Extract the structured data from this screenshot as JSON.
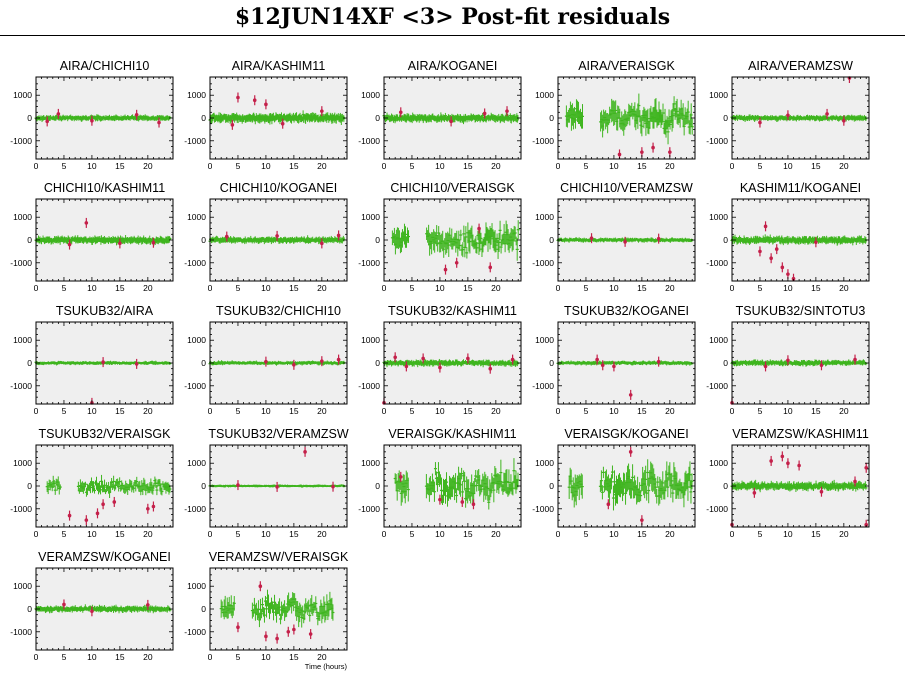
{
  "page": {
    "title": "$12JUN14XF <3> Post-fit residuals"
  },
  "colors": {
    "good": "#3fb51f",
    "flagged": "#c4204a",
    "panel_bg": "#efefef",
    "frame": "#000000"
  },
  "x_axis": {
    "label": "Time (hours)",
    "ticks": [
      0,
      5,
      10,
      15,
      20
    ],
    "range": [
      0,
      24.5
    ]
  },
  "y_axis": {
    "ticks": [
      1000,
      0,
      -1000
    ],
    "range": [
      -1800,
      1800
    ]
  },
  "chart_data": {
    "type": "scatter",
    "panels": [
      {
        "name": "AIRA/CHICHI10",
        "noise": 80,
        "gap": null,
        "start": 0,
        "end": 24,
        "flags": [
          [
            2,
            -150
          ],
          [
            4,
            180
          ],
          [
            10,
            -120
          ],
          [
            18,
            140
          ],
          [
            22,
            -200
          ]
        ]
      },
      {
        "name": "AIRA/KASHIM11",
        "noise": 140,
        "gap": null,
        "start": 0,
        "end": 24,
        "flags": [
          [
            5,
            900
          ],
          [
            8,
            780
          ],
          [
            10,
            600
          ],
          [
            4,
            -300
          ],
          [
            13,
            -250
          ],
          [
            20,
            300
          ]
        ]
      },
      {
        "name": "AIRA/KOGANEI",
        "noise": 120,
        "gap": null,
        "start": 0,
        "end": 24,
        "flags": [
          [
            3,
            250
          ],
          [
            12,
            -150
          ],
          [
            18,
            200
          ],
          [
            22,
            300
          ]
        ]
      },
      {
        "name": "AIRA/VERAISGK",
        "noise": 600,
        "gap": [
          4.5,
          7.5
        ],
        "start": 1.5,
        "end": 24,
        "flags": [
          [
            11,
            -1600
          ],
          [
            15,
            -1500
          ],
          [
            17,
            -1300
          ],
          [
            20,
            -1500
          ]
        ]
      },
      {
        "name": "AIRA/VERAMZSW",
        "noise": 80,
        "gap": null,
        "start": 0,
        "end": 24,
        "flags": [
          [
            5,
            -200
          ],
          [
            10,
            120
          ],
          [
            17,
            180
          ],
          [
            20,
            -120
          ],
          [
            21,
            1800
          ]
        ]
      },
      {
        "name": "CHICHI10/KASHIM11",
        "noise": 110,
        "gap": null,
        "start": 0,
        "end": 24,
        "flags": [
          [
            9,
            750
          ],
          [
            6,
            -200
          ],
          [
            15,
            -150
          ],
          [
            21,
            -120
          ]
        ]
      },
      {
        "name": "CHICHI10/KOGANEI",
        "noise": 90,
        "gap": null,
        "start": 0,
        "end": 24,
        "flags": [
          [
            3,
            150
          ],
          [
            12,
            180
          ],
          [
            20,
            -150
          ],
          [
            23,
            200
          ]
        ]
      },
      {
        "name": "CHICHI10/VERAISGK",
        "noise": 550,
        "gap": [
          4.5,
          7.5
        ],
        "start": 1.5,
        "end": 24,
        "flags": [
          [
            11,
            -1300
          ],
          [
            13,
            -1000
          ],
          [
            17,
            500
          ],
          [
            19,
            -1200
          ]
        ]
      },
      {
        "name": "CHICHI10/VERAMZSW",
        "noise": 60,
        "gap": null,
        "start": 0,
        "end": 24,
        "flags": [
          [
            6,
            80
          ],
          [
            12,
            -80
          ],
          [
            18,
            60
          ]
        ]
      },
      {
        "name": "KASHIM11/KOGANEI",
        "noise": 110,
        "gap": null,
        "start": 0,
        "end": 24,
        "flags": [
          [
            5,
            -500
          ],
          [
            6,
            600
          ],
          [
            7,
            -800
          ],
          [
            8,
            -400
          ],
          [
            9,
            -1200
          ],
          [
            10,
            -1500
          ],
          [
            11,
            -1700
          ],
          [
            15,
            -100
          ]
        ]
      },
      {
        "name": "TSUKUB32/AIRA",
        "noise": 50,
        "gap": null,
        "start": 0,
        "end": 24,
        "flags": [
          [
            10,
            -1750
          ],
          [
            12,
            40
          ],
          [
            18,
            -40
          ]
        ]
      },
      {
        "name": "TSUKUB32/CHICHI10",
        "noise": 55,
        "gap": null,
        "start": 0,
        "end": 24,
        "flags": [
          [
            10,
            60
          ],
          [
            15,
            -80
          ],
          [
            20,
            80
          ],
          [
            23,
            150
          ]
        ]
      },
      {
        "name": "TSUKUB32/KASHIM11",
        "noise": 90,
        "gap": null,
        "start": 0,
        "end": 24,
        "flags": [
          [
            0,
            -1750
          ],
          [
            2,
            250
          ],
          [
            4,
            -150
          ],
          [
            7,
            200
          ],
          [
            10,
            -200
          ],
          [
            15,
            200
          ],
          [
            19,
            -250
          ],
          [
            23,
            150
          ]
        ]
      },
      {
        "name": "TSUKUB32/KOGANEI",
        "noise": 55,
        "gap": null,
        "start": 0,
        "end": 24,
        "flags": [
          [
            7,
            150
          ],
          [
            8,
            -100
          ],
          [
            10,
            -150
          ],
          [
            13,
            -1400
          ],
          [
            18,
            60
          ]
        ]
      },
      {
        "name": "TSUKUB32/SINTOTU3",
        "noise": 80,
        "gap": null,
        "start": 0,
        "end": 24,
        "flags": [
          [
            0,
            -1750
          ],
          [
            6,
            -150
          ],
          [
            10,
            120
          ],
          [
            16,
            -100
          ],
          [
            22,
            150
          ]
        ]
      },
      {
        "name": "TSUKUB32/VERAISGK",
        "noise": 300,
        "gap": [
          4.5,
          7.5
        ],
        "start": 2,
        "end": 24,
        "flags": [
          [
            6,
            -1300
          ],
          [
            9,
            -1500
          ],
          [
            11,
            -1200
          ],
          [
            12,
            -800
          ],
          [
            14,
            -700
          ],
          [
            20,
            -1000
          ],
          [
            21,
            -900
          ]
        ]
      },
      {
        "name": "TSUKUB32/VERAMZSW",
        "noise": 35,
        "gap": null,
        "start": 0,
        "end": 24,
        "flags": [
          [
            5,
            40
          ],
          [
            12,
            -40
          ],
          [
            17,
            1500
          ],
          [
            22,
            -30
          ]
        ]
      },
      {
        "name": "VERAISGK/KASHIM11",
        "noise": 600,
        "gap": [
          4.5,
          7.5
        ],
        "start": 2,
        "end": 24,
        "flags": [
          [
            3,
            400
          ],
          [
            10,
            -600
          ],
          [
            14,
            -700
          ],
          [
            16,
            -800
          ]
        ]
      },
      {
        "name": "VERAISGK/KOGANEI",
        "noise": 650,
        "gap": [
          4.5,
          7.5
        ],
        "start": 2,
        "end": 24,
        "flags": [
          [
            13,
            1500
          ],
          [
            15,
            -1500
          ],
          [
            9,
            -800
          ]
        ]
      },
      {
        "name": "VERAMZSW/KASHIM11",
        "noise": 120,
        "gap": null,
        "start": 0,
        "end": 24,
        "flags": [
          [
            7,
            1100
          ],
          [
            9,
            1300
          ],
          [
            10,
            1000
          ],
          [
            12,
            900
          ],
          [
            4,
            -300
          ],
          [
            16,
            -250
          ],
          [
            22,
            200
          ],
          [
            24,
            800
          ],
          [
            24,
            -1700
          ],
          [
            0,
            -1700
          ]
        ]
      },
      {
        "name": "VERAMZSW/KOGANEI",
        "noise": 90,
        "gap": null,
        "start": 0,
        "end": 24,
        "flags": [
          [
            5,
            200
          ],
          [
            10,
            -100
          ],
          [
            20,
            180
          ]
        ]
      },
      {
        "name": "VERAMZSW/VERAISGK",
        "noise": 500,
        "gap": [
          4.5,
          7.5
        ],
        "start": 2,
        "end": 22,
        "flags": [
          [
            5,
            -800
          ],
          [
            9,
            1000
          ],
          [
            10,
            -1200
          ],
          [
            12,
            -1300
          ],
          [
            14,
            -1000
          ],
          [
            15,
            -900
          ],
          [
            18,
            -1100
          ]
        ]
      }
    ]
  }
}
